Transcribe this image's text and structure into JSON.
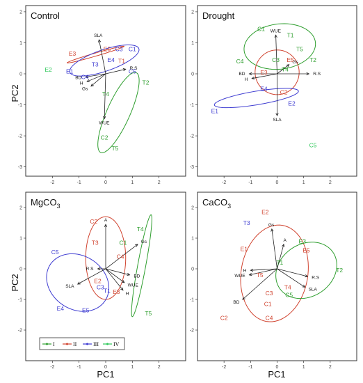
{
  "colors": {
    "I": "#2e9e2e",
    "II": "#d0432f",
    "III": "#3d3bd1",
    "IV": "#2ec85a"
  },
  "legend": [
    {
      "key": "I",
      "label": "I",
      "color": "#2e9e2e"
    },
    {
      "key": "II",
      "label": "II",
      "color": "#d0432f"
    },
    {
      "key": "III",
      "label": "III",
      "color": "#3d3bd1"
    },
    {
      "key": "IV",
      "label": "IV",
      "color": "#2ec85a"
    }
  ],
  "xlabel": "PC1",
  "ylabel": "PC2",
  "chart_data": [
    {
      "type": "scatter",
      "title": "Control",
      "title_sub": "",
      "xlim": [
        -3,
        3
      ],
      "ylim": [
        -3.3,
        2.2
      ],
      "xticks": [
        -2,
        -1,
        0,
        1,
        2
      ],
      "yticks": [
        -3,
        -2,
        -1,
        0,
        1,
        2
      ],
      "points": [
        {
          "label": "C1",
          "x": 1.0,
          "y": 0.8,
          "g": "III"
        },
        {
          "label": "C2",
          "x": -0.05,
          "y": -2.05,
          "g": "I"
        },
        {
          "label": "C3",
          "x": 0.5,
          "y": 0.8,
          "g": "III"
        },
        {
          "label": "C4",
          "x": -0.78,
          "y": -0.1,
          "g": "III"
        },
        {
          "label": "C5",
          "x": 1.0,
          "y": 0.08,
          "g": "III"
        },
        {
          "label": "E1",
          "x": -1.35,
          "y": 0.08,
          "g": "III"
        },
        {
          "label": "E2",
          "x": -2.15,
          "y": 0.13,
          "g": "IV"
        },
        {
          "label": "E3",
          "x": -1.25,
          "y": 0.65,
          "g": "II"
        },
        {
          "label": "E4",
          "x": 0.2,
          "y": 0.45,
          "g": "III"
        },
        {
          "label": "E5",
          "x": 0.05,
          "y": 0.8,
          "g": "II"
        },
        {
          "label": "T1",
          "x": 0.6,
          "y": 0.42,
          "g": "II"
        },
        {
          "label": "T2",
          "x": 1.5,
          "y": -0.28,
          "g": "I"
        },
        {
          "label": "T3",
          "x": -0.4,
          "y": 0.3,
          "g": "III"
        },
        {
          "label": "T4",
          "x": 0.0,
          "y": -0.65,
          "g": "I"
        },
        {
          "label": "T5",
          "x": 0.35,
          "y": -2.4,
          "g": "I"
        }
      ],
      "vectors": [
        {
          "label": "SLA",
          "x": -0.25,
          "y": 1.1
        },
        {
          "label": "R.S",
          "x": 0.75,
          "y": 0.15
        },
        {
          "label": "BD",
          "x": -0.75,
          "y": -0.1
        },
        {
          "label": "H",
          "x": -0.7,
          "y": -0.25
        },
        {
          "label": "Gs",
          "x": -0.55,
          "y": -0.4
        },
        {
          "label": "WUE",
          "x": -0.05,
          "y": -1.45
        }
      ],
      "ellipses": [
        {
          "g": "II",
          "cx": -0.38,
          "cy": 0.62,
          "rx": 1.1,
          "ry": 0.05,
          "angle": 14
        },
        {
          "g": "III",
          "cx": -0.05,
          "cy": 0.43,
          "rx": 1.35,
          "ry": 0.35,
          "angle": 16
        },
        {
          "g": "I",
          "cx": 0.48,
          "cy": -1.25,
          "rx": 1.45,
          "ry": 0.42,
          "angle": 62
        }
      ]
    },
    {
      "type": "scatter",
      "title": "Drought",
      "title_sub": "",
      "xlim": [
        -3,
        3
      ],
      "ylim": [
        -3.3,
        2.2
      ],
      "xticks": [
        -2,
        -1,
        0,
        1,
        2
      ],
      "yticks": [
        -3,
        -2,
        -1,
        0,
        1,
        2
      ],
      "points": [
        {
          "label": "C1",
          "x": -0.6,
          "y": 1.45,
          "g": "I"
        },
        {
          "label": "C2",
          "x": 0.25,
          "y": -0.6,
          "g": "II"
        },
        {
          "label": "C3",
          "x": -0.05,
          "y": 0.45,
          "g": "I"
        },
        {
          "label": "C4",
          "x": -1.4,
          "y": 0.4,
          "g": "I"
        },
        {
          "label": "C5",
          "x": 1.35,
          "y": -2.3,
          "g": "IV"
        },
        {
          "label": "E1",
          "x": -2.35,
          "y": -1.2,
          "g": "III"
        },
        {
          "label": "E2",
          "x": 0.55,
          "y": -0.95,
          "g": "III"
        },
        {
          "label": "E3",
          "x": -0.5,
          "y": 0.05,
          "g": "II"
        },
        {
          "label": "E4",
          "x": -0.5,
          "y": -0.48,
          "g": "III"
        },
        {
          "label": "E5",
          "x": 0.5,
          "y": 0.45,
          "g": "II"
        },
        {
          "label": "T1",
          "x": 0.5,
          "y": 1.25,
          "g": "I"
        },
        {
          "label": "T2",
          "x": 1.35,
          "y": 0.45,
          "g": "I"
        },
        {
          "label": "T4",
          "x": 0.3,
          "y": 0.15,
          "g": "I"
        },
        {
          "label": "T5",
          "x": 0.85,
          "y": 0.8,
          "g": "I"
        }
      ],
      "vectors": [
        {
          "label": "WUE",
          "x": -0.05,
          "y": 1.25
        },
        {
          "label": "Gs",
          "x": 0.45,
          "y": 0.3
        },
        {
          "label": "R.S",
          "x": 1.2,
          "y": 0.0
        },
        {
          "label": "BD",
          "x": -1.05,
          "y": 0.0
        },
        {
          "label": "H",
          "x": -0.95,
          "y": -0.15
        },
        {
          "label": "SLA",
          "x": 0.0,
          "y": -1.35
        }
      ],
      "ellipses": [
        {
          "g": "I",
          "cx": 0.1,
          "cy": 0.88,
          "rx": 1.35,
          "ry": 0.73,
          "angle": 5
        },
        {
          "g": "II",
          "cx": 0.0,
          "cy": 0.05,
          "rx": 0.83,
          "ry": 0.72,
          "angle": 0
        },
        {
          "g": "III",
          "cx": -0.78,
          "cy": -0.78,
          "rx": 1.6,
          "ry": 0.22,
          "angle": 8
        }
      ]
    },
    {
      "type": "scatter",
      "title": "MgCO",
      "title_sub": "3",
      "xlim": [
        -3,
        3
      ],
      "ylim": [
        -3.0,
        2.5
      ],
      "xticks": [
        -2,
        -1,
        0,
        1,
        2
      ],
      "yticks": [
        -2,
        -1,
        0,
        1,
        2
      ],
      "points": [
        {
          "label": "C1",
          "x": 0.65,
          "y": 0.85,
          "g": "I"
        },
        {
          "label": "C2",
          "x": -0.45,
          "y": 1.55,
          "g": "II"
        },
        {
          "label": "C3",
          "x": -0.2,
          "y": -0.6,
          "g": "III"
        },
        {
          "label": "C4",
          "x": 0.55,
          "y": 0.4,
          "g": "II"
        },
        {
          "label": "C5",
          "x": -1.9,
          "y": 0.55,
          "g": "III"
        },
        {
          "label": "E2",
          "x": -0.3,
          "y": -0.4,
          "g": "II"
        },
        {
          "label": "E3",
          "x": 0.4,
          "y": -0.75,
          "g": "II"
        },
        {
          "label": "E4",
          "x": -1.7,
          "y": -1.3,
          "g": "III"
        },
        {
          "label": "E5",
          "x": -0.75,
          "y": -1.35,
          "g": "III"
        },
        {
          "label": "T1",
          "x": 0.05,
          "y": -0.72,
          "g": "III"
        },
        {
          "label": "T3",
          "x": -0.4,
          "y": 0.85,
          "g": "II"
        },
        {
          "label": "T4",
          "x": 1.3,
          "y": 1.3,
          "g": "I"
        },
        {
          "label": "T5",
          "x": 1.6,
          "y": -1.45,
          "g": "I"
        }
      ],
      "vectors": [
        {
          "label": "A",
          "x": 0.0,
          "y": 1.45
        },
        {
          "label": "Gs",
          "x": 1.2,
          "y": 0.8
        },
        {
          "label": "BD",
          "x": 0.9,
          "y": -0.2
        },
        {
          "label": "WUE",
          "x": 0.7,
          "y": -0.45
        },
        {
          "label": "H",
          "x": 0.65,
          "y": -0.7
        },
        {
          "label": "R.S",
          "x": -0.3,
          "y": 0.0
        },
        {
          "label": "SLA",
          "x": -1.05,
          "y": -0.5
        }
      ],
      "ellipses": [
        {
          "g": "II",
          "cx": 0.0,
          "cy": 0.35,
          "rx": 0.75,
          "ry": 1.35,
          "angle": 0
        },
        {
          "g": "III",
          "cx": -1.05,
          "cy": -0.45,
          "rx": 1.2,
          "ry": 0.9,
          "angle": -20
        },
        {
          "g": "I",
          "cx": 1.35,
          "cy": 0.1,
          "rx": 1.7,
          "ry": 0.15,
          "angle": 78
        }
      ]
    },
    {
      "type": "scatter",
      "title": "CaCO",
      "title_sub": "3",
      "xlim": [
        -3,
        3
      ],
      "ylim": [
        -3.0,
        2.5
      ],
      "xticks": [
        -2,
        -1,
        0,
        1,
        2
      ],
      "yticks": [
        -2,
        -1,
        0,
        1,
        2
      ],
      "points": [
        {
          "label": "C1",
          "x": -0.35,
          "y": -1.15,
          "g": "II"
        },
        {
          "label": "C2",
          "x": -2.0,
          "y": -1.6,
          "g": "II"
        },
        {
          "label": "C3",
          "x": -0.3,
          "y": -0.8,
          "g": "II"
        },
        {
          "label": "C4",
          "x": -0.3,
          "y": -1.6,
          "g": "II"
        },
        {
          "label": "C5",
          "x": 0.45,
          "y": -0.85,
          "g": "I"
        },
        {
          "label": "E1",
          "x": -1.25,
          "y": 0.65,
          "g": "II"
        },
        {
          "label": "E2",
          "x": -0.45,
          "y": 1.85,
          "g": "II"
        },
        {
          "label": "E3",
          "x": 0.95,
          "y": 0.9,
          "g": "I"
        },
        {
          "label": "E5",
          "x": 1.1,
          "y": 0.6,
          "g": "II"
        },
        {
          "label": "T1",
          "x": 0.1,
          "y": 0.2,
          "g": "I"
        },
        {
          "label": "T2",
          "x": 2.35,
          "y": -0.05,
          "g": "I"
        },
        {
          "label": "T3",
          "x": -1.15,
          "y": 1.5,
          "g": "III"
        },
        {
          "label": "T4",
          "x": 0.4,
          "y": -0.6,
          "g": "II"
        },
        {
          "label": "T5",
          "x": -0.65,
          "y": -0.2,
          "g": "II"
        }
      ],
      "vectors": [
        {
          "label": "Gs",
          "x": -0.2,
          "y": 1.3
        },
        {
          "label": "A",
          "x": 0.25,
          "y": 0.8
        },
        {
          "label": "H",
          "x": -1.0,
          "y": -0.05
        },
        {
          "label": "WUE",
          "x": -1.05,
          "y": -0.2
        },
        {
          "label": "R.S",
          "x": 1.15,
          "y": -0.25
        },
        {
          "label": "SLA",
          "x": 1.05,
          "y": -0.6
        },
        {
          "label": "BD",
          "x": -1.3,
          "y": -1.0
        }
      ],
      "ellipses": [
        {
          "g": "II",
          "cx": -0.1,
          "cy": -0.15,
          "rx": 1.25,
          "ry": 1.6,
          "angle": -15
        },
        {
          "g": "I",
          "cx": 1.1,
          "cy": -0.05,
          "rx": 1.18,
          "ry": 0.88,
          "angle": 20
        }
      ]
    }
  ]
}
